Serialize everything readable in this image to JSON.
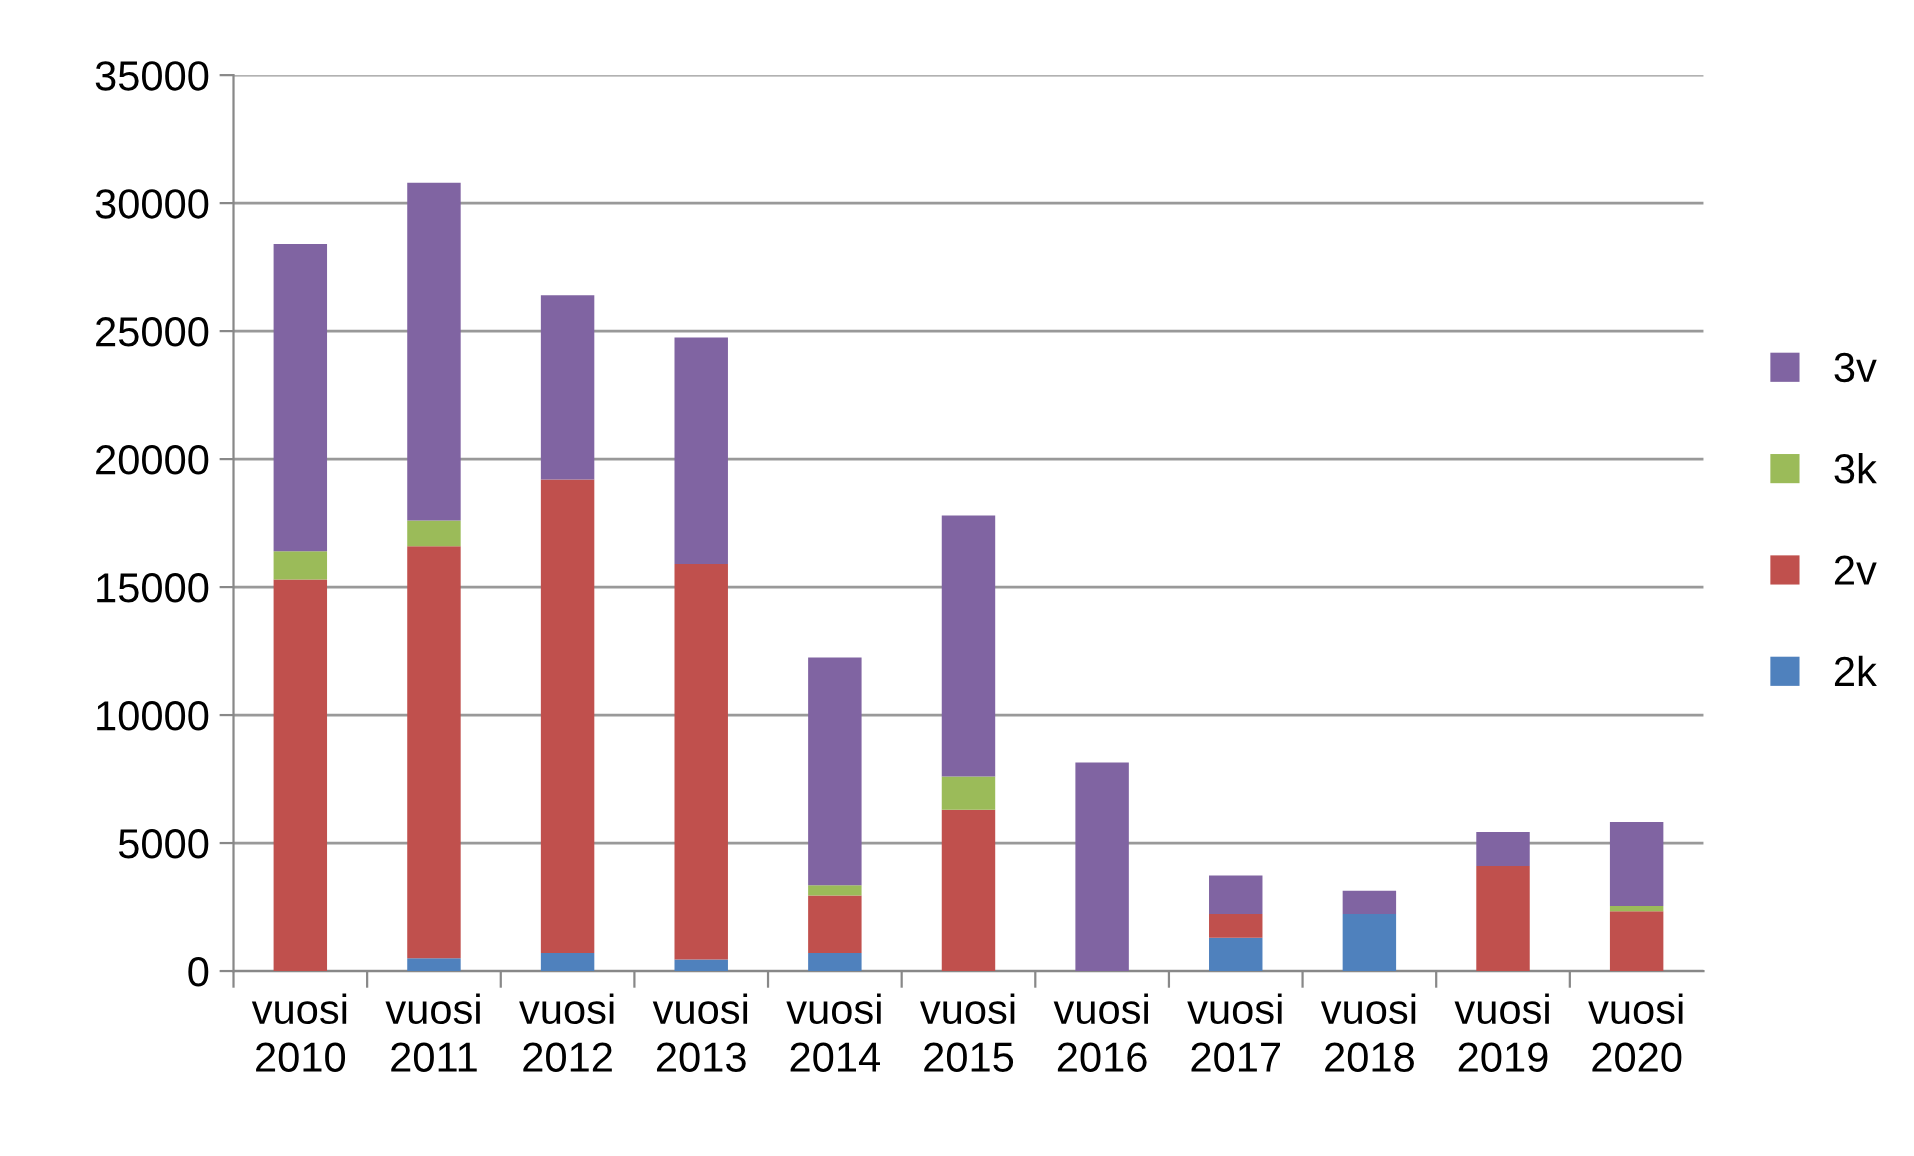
{
  "chart_data": {
    "type": "bar",
    "stacked": true,
    "categories": [
      "vuosi 2010",
      "vuosi 2011",
      "vuosi 2012",
      "vuosi 2013",
      "vuosi 2014",
      "vuosi 2015",
      "vuosi 2016",
      "vuosi 2017",
      "vuosi 2018",
      "vuosi 2019",
      "vuosi 2020"
    ],
    "series": [
      {
        "name": "2k",
        "color": "#4f81bd",
        "values": [
          0,
          500,
          700,
          450,
          700,
          0,
          0,
          1300,
          2230,
          0,
          0
        ]
      },
      {
        "name": "2v",
        "color": "#c0504d",
        "values": [
          15300,
          16100,
          18500,
          15450,
          2250,
          6300,
          0,
          930,
          0,
          4100,
          2340
        ]
      },
      {
        "name": "3k",
        "color": "#9bbb59",
        "values": [
          1100,
          1000,
          0,
          0,
          400,
          1300,
          0,
          0,
          0,
          0,
          200
        ]
      },
      {
        "name": "3v",
        "color": "#8064a2",
        "values": [
          12000,
          13200,
          7200,
          8850,
          8900,
          10200,
          8150,
          1500,
          910,
          1330,
          3280
        ]
      }
    ],
    "ylim": [
      0,
      35000
    ],
    "yticks": [
      0,
      5000,
      10000,
      15000,
      20000,
      25000,
      30000,
      35000
    ],
    "grid": "y",
    "legend": "right"
  }
}
